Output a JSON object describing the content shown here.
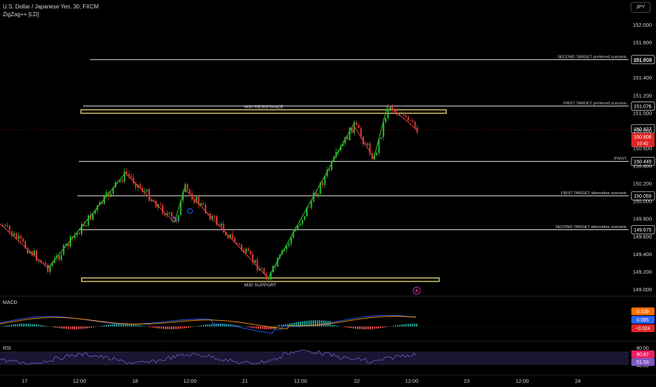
{
  "header": {
    "symbol_line": "U.S. Dollar / Japanese Yen, 30, FXCM",
    "indicator": "ZigZag++ [LD]",
    "currency": "JPY"
  },
  "colors": {
    "up": "#2ebd2e",
    "down": "#e03a3a",
    "level": "#e8e8e8",
    "zone": "#f0e07a",
    "zigzag_up": "#2ebd2e",
    "zigzag_down": "#e03a3a",
    "macd_line": "#2962ff",
    "signal_line": "#ff9800",
    "rsi_line": "#7e57c2"
  },
  "price_axis": {
    "labels": [
      "152.000",
      "151.800",
      "151.600",
      "151.400",
      "151.200",
      "151.000",
      "150.800",
      "150.600",
      "150.400",
      "150.200",
      "150.000",
      "149.800",
      "149.600",
      "149.400",
      "149.200",
      "149.000"
    ]
  },
  "time_axis": {
    "labels": [
      "17",
      "12:00",
      "18",
      "12:00",
      "21",
      "12:00",
      "22",
      "12:00",
      "23",
      "12:00",
      "24"
    ]
  },
  "levels": [
    {
      "label": "SECOND TARGET preferred scenario",
      "price": "151.603",
      "value": 151.603
    },
    {
      "label": "FIRST TARGET preferred scenario",
      "price": "151.076",
      "value": 151.076
    },
    {
      "label": "PIVOT",
      "price": "150.449",
      "value": 150.449
    },
    {
      "label": "FIRST TARGET alternative scenario",
      "price": "150.059",
      "value": 150.059
    },
    {
      "label": "SECOND TARGET alternative scenario",
      "price": "149.675",
      "value": 149.675
    }
  ],
  "zones": {
    "resistance_label": "M30 RESISTANCE",
    "support_label": "M30 SUPPORT"
  },
  "current": {
    "prev_price": "150.827",
    "price": "150.806",
    "countdown": "10:42"
  },
  "macd": {
    "title": "MACD",
    "values": [
      "0.109",
      "0.085",
      "−0.024"
    ]
  },
  "rsi": {
    "title": "RSI",
    "levels": [
      "80.00",
      "40.00"
    ],
    "values": [
      "60.87",
      "51.53"
    ]
  },
  "chart_data": {
    "type": "line",
    "title": "U.S. Dollar / Japanese Yen, 30, FXCM",
    "xlabel": "",
    "ylabel": "",
    "ylim": [
      149.0,
      152.1
    ],
    "x": [
      "17",
      "17 12:00",
      "18",
      "18 12:00",
      "21",
      "21 12:00",
      "22",
      "22 12:00 (last)"
    ],
    "series": [
      {
        "name": "ZigZag++ [LD]",
        "points": [
          [
            "17",
            149.74
          ],
          [
            "17 ~09:00",
            149.24
          ],
          [
            "18 ~03:00",
            150.26
          ],
          [
            "18 ~11:00",
            149.81
          ],
          [
            "18 ~14:00",
            150.14
          ],
          [
            "21 ~06:00",
            149.13
          ],
          [
            "22 ~00:00",
            150.85
          ],
          [
            "22 ~04:00",
            150.58
          ],
          [
            "22 ~08:00",
            151.09
          ],
          [
            "22 12:00",
            150.81
          ]
        ]
      }
    ],
    "annotations": [
      "M30 RESISTANCE",
      "M30 SUPPORT",
      "PIVOT"
    ]
  }
}
